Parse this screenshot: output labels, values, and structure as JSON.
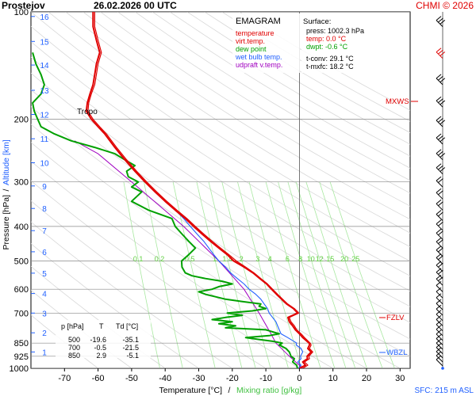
{
  "header": {
    "station": "Prostejov",
    "datetime": "26.02.2026 00 UTC",
    "copyright": "CHMI © 2026"
  },
  "legend": {
    "title": "EMAGRAM",
    "items": [
      {
        "label": "temperature",
        "color": "#e00000"
      },
      {
        "label": "virt.temp.",
        "color": "#e00000"
      },
      {
        "label": "dew point",
        "color": "#00a000"
      },
      {
        "label": "wet bulb temp.",
        "color": "#2060ff"
      },
      {
        "label": "udpraft v.temp.",
        "color": "#a000c0"
      }
    ]
  },
  "surface": {
    "title": "Surface:",
    "press": "press: 1002.3 hPa",
    "temp": "temp: 0.0 °C",
    "dwpt": "dwpt: -0.6 °C",
    "tconv": "t-conv: 29.1 °C",
    "tmxfc": "t-mxfc: 18.2 °C"
  },
  "levels_table": {
    "headers": [
      "p [hPa]",
      "T",
      "Td [°C]"
    ],
    "rows": [
      [
        "500",
        "-19.6",
        "-35.1"
      ],
      [
        "700",
        "-0.5",
        "-21.5"
      ],
      [
        "850",
        "2.9",
        "-5.1"
      ]
    ]
  },
  "markers": {
    "tropo": "Tropo",
    "mxws": "MXWS",
    "fzlv": "FZLV",
    "wbzl": "WBZL"
  },
  "footer": {
    "sfc": "SFC: 215 m ASL"
  },
  "chart_data": {
    "type": "line",
    "title": "EMAGRAM",
    "xlabel": "Temperature [°C]",
    "xlabel_sep": "/",
    "xlabel2": "Mixing ratio [g/kg]",
    "ylabel": "Pressure [hPa]",
    "ylabel_sep": "/",
    "ylabel2": "Altitude [km]",
    "xlim": [
      -80,
      33
    ],
    "ylim": [
      1000,
      100
    ],
    "x_ticks": [
      -70,
      -60,
      -50,
      -40,
      -30,
      -20,
      -10,
      0,
      10,
      20,
      30
    ],
    "pressure_ticks": [
      100,
      200,
      300,
      400,
      500,
      600,
      700,
      850,
      925,
      1000
    ],
    "altitude_ticks": [
      {
        "km": 1,
        "p": 900
      },
      {
        "km": 2,
        "p": 795
      },
      {
        "km": 3,
        "p": 700
      },
      {
        "km": 4,
        "p": 617
      },
      {
        "km": 5,
        "p": 541
      },
      {
        "km": 6,
        "p": 471
      },
      {
        "km": 7,
        "p": 411
      },
      {
        "km": 8,
        "p": 356
      },
      {
        "km": 9,
        "p": 308
      },
      {
        "km": 10,
        "p": 265
      },
      {
        "km": 11,
        "p": 227
      },
      {
        "km": 12,
        "p": 194
      },
      {
        "km": 13,
        "p": 166
      },
      {
        "km": 14,
        "p": 141
      },
      {
        "km": 15,
        "p": 121
      },
      {
        "km": 16,
        "p": 103
      }
    ],
    "mixing_ratio_lines": [
      {
        "label": "0.1",
        "v": 0.1
      },
      {
        "label": "0.2",
        "v": 0.2
      },
      {
        "label": "0.5",
        "v": 0.5
      },
      {
        "label": "1",
        "v": 1
      },
      {
        "label": "1.4",
        "v": 1.4
      },
      {
        "label": "2",
        "v": 2
      },
      {
        "label": "3",
        "v": 3
      },
      {
        "label": "4",
        "v": 4
      },
      {
        "label": "6",
        "v": 6
      },
      {
        "label": "8",
        "v": 8
      },
      {
        "label": "10",
        "v": 10
      },
      {
        "label": "12",
        "v": 12
      },
      {
        "label": "15",
        "v": 15
      },
      {
        "label": "20",
        "v": 20
      },
      {
        "label": "25",
        "v": 25
      }
    ],
    "series": [
      {
        "name": "virt.temp.",
        "color": "#e00000",
        "points": [
          [
            1000,
            1.0
          ],
          [
            980,
            2.5
          ],
          [
            960,
            1.5
          ],
          [
            940,
            3.0
          ],
          [
            925,
            2.8
          ],
          [
            900,
            4.0
          ],
          [
            880,
            3.0
          ],
          [
            860,
            3.5
          ],
          [
            850,
            3.2
          ],
          [
            820,
            1.5
          ],
          [
            800,
            0.5
          ],
          [
            780,
            -0.8
          ],
          [
            760,
            -1.5
          ],
          [
            740,
            -2.5
          ],
          [
            720,
            -3.0
          ],
          [
            700,
            -0.2
          ],
          [
            680,
            -1.5
          ],
          [
            660,
            -3.5
          ],
          [
            640,
            -5.0
          ],
          [
            620,
            -6.5
          ],
          [
            600,
            -8.0
          ],
          [
            580,
            -9.5
          ],
          [
            560,
            -11.5
          ],
          [
            540,
            -13.5
          ],
          [
            520,
            -16.0
          ],
          [
            500,
            -18.8
          ],
          [
            480,
            -21.0
          ],
          [
            460,
            -23.5
          ],
          [
            440,
            -26.0
          ],
          [
            420,
            -28.5
          ],
          [
            400,
            -31.0
          ],
          [
            380,
            -33.5
          ],
          [
            360,
            -36.5
          ],
          [
            340,
            -39.5
          ],
          [
            320,
            -42.5
          ],
          [
            300,
            -45.5
          ],
          [
            280,
            -48.5
          ],
          [
            260,
            -51.5
          ],
          [
            240,
            -54.5
          ],
          [
            220,
            -57.5
          ],
          [
            210,
            -59.5
          ],
          [
            200,
            -61.5
          ],
          [
            190,
            -63.0
          ],
          [
            180,
            -62.8
          ],
          [
            170,
            -62.0
          ],
          [
            160,
            -61.0
          ],
          [
            150,
            -60.5
          ],
          [
            140,
            -60.0
          ],
          [
            130,
            -59.0
          ],
          [
            120,
            -60.0
          ],
          [
            110,
            -61.0
          ],
          [
            100,
            -61.0
          ]
        ]
      },
      {
        "name": "temperature",
        "color": "#e00000",
        "points": [
          [
            1000,
            0.0
          ],
          [
            980,
            1.8
          ],
          [
            960,
            1.0
          ],
          [
            940,
            2.4
          ],
          [
            925,
            2.3
          ],
          [
            900,
            3.5
          ],
          [
            880,
            2.5
          ],
          [
            860,
            3.0
          ],
          [
            850,
            2.9
          ],
          [
            820,
            1.0
          ],
          [
            800,
            0.0
          ],
          [
            780,
            -1.2
          ],
          [
            760,
            -2.0
          ],
          [
            740,
            -3.0
          ],
          [
            720,
            -3.4
          ],
          [
            700,
            -0.5
          ],
          [
            680,
            -1.8
          ],
          [
            660,
            -3.8
          ],
          [
            640,
            -5.3
          ],
          [
            620,
            -6.8
          ],
          [
            600,
            -8.3
          ],
          [
            580,
            -9.8
          ],
          [
            560,
            -11.8
          ],
          [
            540,
            -13.8
          ],
          [
            520,
            -16.5
          ],
          [
            500,
            -19.6
          ],
          [
            480,
            -21.5
          ],
          [
            460,
            -24.0
          ],
          [
            440,
            -26.5
          ],
          [
            420,
            -29.0
          ],
          [
            400,
            -31.5
          ],
          [
            380,
            -34.0
          ],
          [
            360,
            -37.0
          ],
          [
            340,
            -40.0
          ],
          [
            320,
            -43.0
          ],
          [
            300,
            -46.0
          ],
          [
            280,
            -49.0
          ],
          [
            260,
            -52.0
          ],
          [
            240,
            -55.0
          ],
          [
            220,
            -58.0
          ],
          [
            210,
            -60.0
          ],
          [
            200,
            -62.0
          ],
          [
            190,
            -63.5
          ],
          [
            180,
            -63.2
          ],
          [
            170,
            -62.4
          ],
          [
            160,
            -61.5
          ],
          [
            150,
            -61.0
          ],
          [
            140,
            -60.5
          ],
          [
            130,
            -59.5
          ],
          [
            120,
            -60.5
          ],
          [
            110,
            -61.5
          ],
          [
            100,
            -61.5
          ]
        ]
      },
      {
        "name": "wet bulb temp.",
        "color": "#2060ff",
        "points": [
          [
            1000,
            -0.3
          ],
          [
            980,
            0.5
          ],
          [
            960,
            -0.5
          ],
          [
            940,
            0.5
          ],
          [
            925,
            0.3
          ],
          [
            900,
            1.0
          ],
          [
            880,
            0.5
          ],
          [
            860,
            -1.0
          ],
          [
            850,
            -0.8
          ],
          [
            820,
            -3.5
          ],
          [
            800,
            -5.5
          ],
          [
            780,
            -6.0
          ],
          [
            760,
            -6.5
          ],
          [
            740,
            -7.0
          ],
          [
            720,
            -8.0
          ],
          [
            700,
            -9.0
          ],
          [
            680,
            -9.5
          ],
          [
            660,
            -10.5
          ],
          [
            640,
            -11.5
          ],
          [
            620,
            -13.0
          ],
          [
            600,
            -15.0
          ],
          [
            580,
            -16.5
          ],
          [
            560,
            -18.5
          ],
          [
            540,
            -20.5
          ],
          [
            520,
            -22.0
          ],
          [
            500,
            -24.0
          ],
          [
            480,
            -25.5
          ],
          [
            460,
            -27.0
          ],
          [
            440,
            -28.5
          ],
          [
            420,
            -30.5
          ],
          [
            400,
            -32.5
          ],
          [
            380,
            -34.5
          ],
          [
            360,
            -37.0
          ],
          [
            340,
            -40.0
          ],
          [
            320,
            -43.0
          ],
          [
            300,
            -46.0
          ]
        ]
      },
      {
        "name": "dew point",
        "color": "#00a000",
        "points": [
          [
            1000,
            -0.6
          ],
          [
            980,
            -0.8
          ],
          [
            960,
            -2.0
          ],
          [
            940,
            -1.5
          ],
          [
            925,
            -2.5
          ],
          [
            900,
            -3.0
          ],
          [
            880,
            -4.0
          ],
          [
            860,
            -6.0
          ],
          [
            850,
            -5.1
          ],
          [
            840,
            -8.0
          ],
          [
            830,
            -12.0
          ],
          [
            820,
            -16.0
          ],
          [
            810,
            -9.0
          ],
          [
            800,
            -6.0
          ],
          [
            790,
            -8.0
          ],
          [
            780,
            -10.0
          ],
          [
            770,
            -22.0
          ],
          [
            760,
            -19.0
          ],
          [
            750,
            -24.0
          ],
          [
            740,
            -20.0
          ],
          [
            730,
            -26.0
          ],
          [
            720,
            -22.0
          ],
          [
            710,
            -17.0
          ],
          [
            700,
            -21.5
          ],
          [
            690,
            -14.0
          ],
          [
            680,
            -10.0
          ],
          [
            670,
            -12.0
          ],
          [
            660,
            -11.5
          ],
          [
            650,
            -17.0
          ],
          [
            640,
            -22.0
          ],
          [
            630,
            -25.0
          ],
          [
            620,
            -28.0
          ],
          [
            610,
            -30.0
          ],
          [
            600,
            -26.0
          ],
          [
            590,
            -24.0
          ],
          [
            580,
            -20.0
          ],
          [
            570,
            -23.0
          ],
          [
            560,
            -28.0
          ],
          [
            550,
            -32.0
          ],
          [
            540,
            -34.0
          ],
          [
            520,
            -35.0
          ],
          [
            500,
            -35.1
          ],
          [
            480,
            -33.0
          ],
          [
            460,
            -31.0
          ],
          [
            440,
            -33.0
          ],
          [
            420,
            -35.0
          ],
          [
            400,
            -37.0
          ],
          [
            380,
            -38.0
          ],
          [
            360,
            -45.0
          ],
          [
            340,
            -50.0
          ],
          [
            320,
            -47.0
          ],
          [
            310,
            -50.0
          ],
          [
            300,
            -48.0
          ],
          [
            290,
            -51.0
          ],
          [
            280,
            -51.5
          ],
          [
            270,
            -49.0
          ],
          [
            260,
            -52.0
          ],
          [
            250,
            -55.0
          ],
          [
            240,
            -61.0
          ],
          [
            230,
            -68.0
          ],
          [
            220,
            -73.0
          ],
          [
            210,
            -77.0
          ],
          [
            200,
            -78.0
          ],
          [
            190,
            -79.0
          ],
          [
            180,
            -79.5
          ],
          [
            170,
            -77.0
          ],
          [
            160,
            -76.0
          ],
          [
            150,
            -77.0
          ],
          [
            140,
            -78.5
          ],
          [
            130,
            -79.5
          ]
        ]
      },
      {
        "name": "udpraft v.temp.",
        "color": "#a000c0",
        "points": [
          [
            1000,
            1.0
          ],
          [
            925,
            -3.0
          ],
          [
            850,
            -7.0
          ],
          [
            800,
            -8.5
          ],
          [
            700,
            -12.0
          ],
          [
            600,
            -16.5
          ],
          [
            500,
            -24.0
          ],
          [
            400,
            -34.5
          ],
          [
            300,
            -50.0
          ],
          [
            250,
            -60.0
          ],
          [
            230,
            -67.0
          ]
        ]
      }
    ]
  }
}
